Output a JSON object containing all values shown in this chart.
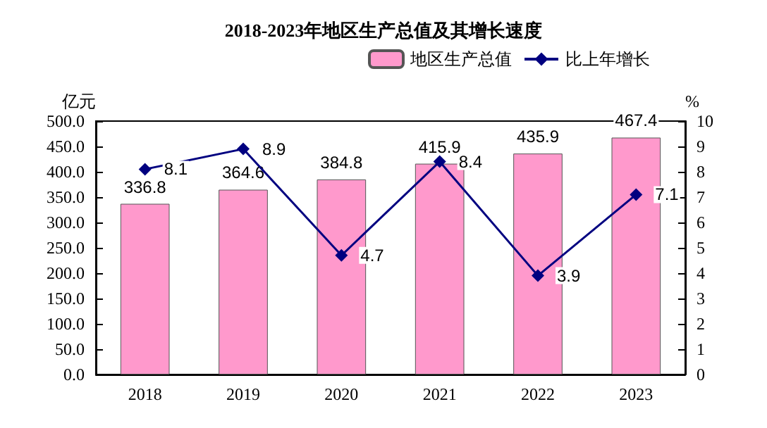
{
  "chart_data": {
    "type": "bar",
    "title": "2018-2023年地区生产总值及其增长速度",
    "ylabel": "亿元",
    "y2label": "%",
    "categories": [
      "2018",
      "2019",
      "2020",
      "2021",
      "2022",
      "2023"
    ],
    "series": [
      {
        "name": "地区生产总值",
        "color": "#ff99cc",
        "values": [
          336.8,
          364.6,
          384.8,
          415.9,
          435.9,
          467.4
        ]
      },
      {
        "name": "比上年增长",
        "type": "line",
        "axis": "y2",
        "color": "#000080",
        "marker": "diamond",
        "values": [
          8.1,
          8.9,
          4.7,
          8.4,
          3.9,
          7.1
        ]
      }
    ],
    "ylim": [
      0,
      500
    ],
    "yticks": [
      {
        "value": 0,
        "label": "0.0"
      },
      {
        "value": 50,
        "label": "50.0"
      },
      {
        "value": 100,
        "label": "100.0"
      },
      {
        "value": 150,
        "label": "150.0"
      },
      {
        "value": 200,
        "label": "200.0"
      },
      {
        "value": 250,
        "label": "250.0"
      },
      {
        "value": 300,
        "label": "300.0"
      },
      {
        "value": 350,
        "label": "350.0"
      },
      {
        "value": 400,
        "label": "400.0"
      },
      {
        "value": 450,
        "label": "450.0"
      },
      {
        "value": 500,
        "label": "500.0"
      }
    ],
    "y2lim": [
      0,
      10
    ],
    "y2ticks": [
      0,
      1,
      2,
      3,
      4,
      5,
      6,
      7,
      8,
      9,
      10
    ],
    "data_labels": true,
    "legend": "top right",
    "grid": false
  }
}
